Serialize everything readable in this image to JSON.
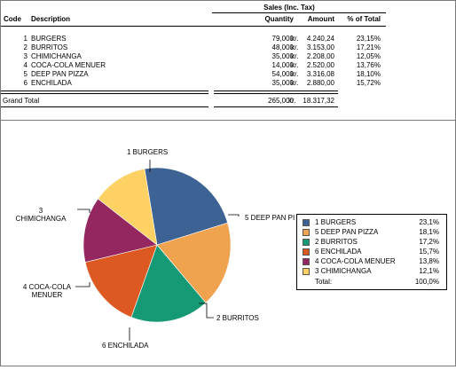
{
  "table": {
    "group_header": "Sales (Inc. Tax)",
    "headers": {
      "code": "Code",
      "description": "Description",
      "quantity": "Quantity",
      "amount": "Amount",
      "pct": "% of Total"
    },
    "rows": [
      {
        "code": "1",
        "description": "BURGERS",
        "quantity": "79,000",
        "currency": "kr.",
        "amount": "4.240,24",
        "pct": "23,15%"
      },
      {
        "code": "2",
        "description": "BURRITOS",
        "quantity": "48,000",
        "currency": "kr.",
        "amount": "3.153,00",
        "pct": "17,21%"
      },
      {
        "code": "3",
        "description": "CHIMICHANGA",
        "quantity": "35,000",
        "currency": "kr.",
        "amount": "2.208,00",
        "pct": "12,05%"
      },
      {
        "code": "4",
        "description": "COCA-COLA MENUER",
        "quantity": "14,000",
        "currency": "kr.",
        "amount": "2.520,00",
        "pct": "13,76%"
      },
      {
        "code": "5",
        "description": "DEEP PAN PIZZA",
        "quantity": "54,000",
        "currency": "kr.",
        "amount": "3.316,08",
        "pct": "18,10%"
      },
      {
        "code": "6",
        "description": "ENCHILADA",
        "quantity": "35,000",
        "currency": "kr.",
        "amount": "2.880,00",
        "pct": "15,72%"
      }
    ],
    "total": {
      "label": "Grand Total",
      "quantity": "265,000",
      "currency": "kr.",
      "amount": "18.317,32"
    }
  },
  "chart_data": {
    "type": "pie",
    "slices": [
      {
        "label": "1 BURGERS",
        "value": 23.1,
        "color": "#3d6294"
      },
      {
        "label": "5 DEEP PAN PIZZA",
        "value": 18.1,
        "color": "#f0a34e"
      },
      {
        "label": "2 BURRITOS",
        "value": 17.2,
        "color": "#169a76"
      },
      {
        "label": "6 ENCHILADA",
        "value": 15.7,
        "color": "#dc5a22"
      },
      {
        "label": "4 COCA-COLA MENUER",
        "value": 13.8,
        "color": "#952760"
      },
      {
        "label": "3 CHIMICHANGA",
        "value": 12.1,
        "color": "#fdd163"
      }
    ],
    "legend": {
      "position": "right",
      "items": [
        {
          "name": "1 BURGERS",
          "pct": "23,1%",
          "color": "#3d6294"
        },
        {
          "name": "5 DEEP PAN PIZZA",
          "pct": "18,1%",
          "color": "#f0a34e"
        },
        {
          "name": "2 BURRITOS",
          "pct": "17,2%",
          "color": "#169a76"
        },
        {
          "name": "6 ENCHILADA",
          "pct": "15,7%",
          "color": "#dc5a22"
        },
        {
          "name": "4 COCA-COLA MENUER",
          "pct": "13,8%",
          "color": "#952760"
        },
        {
          "name": "3 CHIMICHANGA",
          "pct": "12,1%",
          "color": "#fdd163"
        }
      ],
      "total_label": "Total:",
      "total_pct": "100,0%"
    },
    "slice_labels": {
      "burgers": "1 BURGERS",
      "pizza": "5 DEEP PAN PI",
      "burritos": "2 BURRITOS",
      "enchilada": "6 ENCHILADA",
      "coca_line1": "4 COCA-COLA",
      "coca_line2": "MENUER",
      "chimi_line1": "3",
      "chimi_line2": "CHIMICHANGA"
    }
  }
}
